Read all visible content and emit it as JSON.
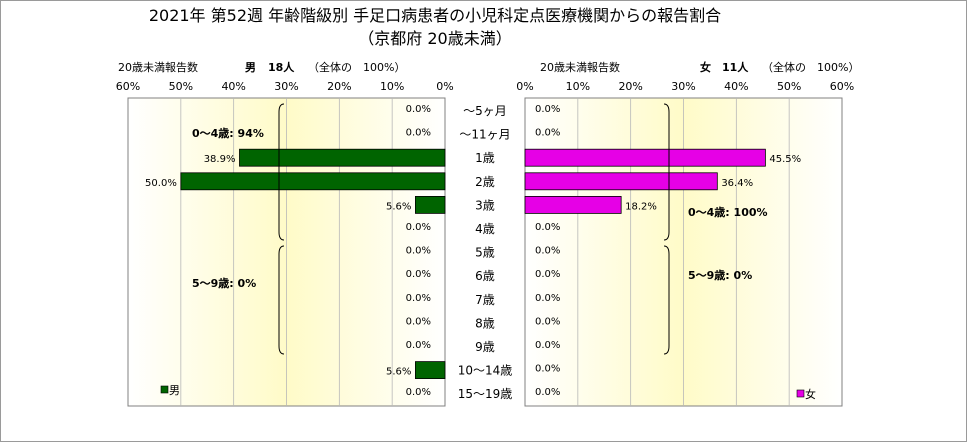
{
  "title_line1": "2021年 第52週 年齢階級別 手足口病患者の小児科定点医療機関からの報告割合",
  "title_line2": "（京都府 20歳未満）",
  "left_header": {
    "caption": "20歳未満報告数",
    "sex": "男",
    "count": "18人",
    "note": "（全体の　100%）"
  },
  "right_header": {
    "caption": "20歳未満報告数",
    "sex": "女",
    "count": "11人",
    "note": "（全体の　100%）"
  },
  "left_group_labels": [
    "0〜4歳: 94%",
    "5〜9歳: 0%"
  ],
  "right_group_labels": [
    "0〜4歳: 100%",
    "5〜9歳: 0%"
  ],
  "legend": {
    "male": "男",
    "female": "女"
  },
  "colors": {
    "male": "#006400",
    "female": "#e600e6",
    "background_gradient_center": "#fffbc8",
    "gridline": "#b8b8b8"
  },
  "chart_data": {
    "type": "bar",
    "orientation": "horizontal-butterfly",
    "categories": [
      "〜5ヶ月",
      "〜11ヶ月",
      "1歳",
      "2歳",
      "3歳",
      "4歳",
      "5歳",
      "6歳",
      "7歳",
      "8歳",
      "9歳",
      "10〜14歳",
      "15〜19歳"
    ],
    "x_ticks": [
      "60%",
      "50%",
      "40%",
      "30%",
      "20%",
      "10%",
      "0%"
    ],
    "x_ticks_right": [
      "0%",
      "10%",
      "20%",
      "30%",
      "40%",
      "50%",
      "60%"
    ],
    "xlim": [
      0,
      60
    ],
    "series": [
      {
        "name": "男",
        "side": "left",
        "values": [
          0.0,
          0.0,
          38.9,
          50.0,
          5.6,
          0.0,
          0.0,
          0.0,
          0.0,
          0.0,
          0.0,
          5.6,
          0.0
        ],
        "labels": [
          "0.0%",
          "0.0%",
          "38.9%",
          "50.0%",
          "5.6%",
          "0.0%",
          "0.0%",
          "0.0%",
          "0.0%",
          "0.0%",
          "0.0%",
          "5.6%",
          "0.0%"
        ]
      },
      {
        "name": "女",
        "side": "right",
        "values": [
          0.0,
          0.0,
          45.5,
          36.4,
          18.2,
          0.0,
          0.0,
          0.0,
          0.0,
          0.0,
          0.0,
          0.0,
          0.0
        ],
        "labels": [
          "0.0%",
          "0.0%",
          "45.5%",
          "36.4%",
          "18.2%",
          "0.0%",
          "0.0%",
          "0.0%",
          "0.0%",
          "0.0%",
          "0.0%",
          "0.0%",
          "0.0%"
        ]
      }
    ],
    "grid": true,
    "legend_position": "bottom-left / bottom-right"
  }
}
